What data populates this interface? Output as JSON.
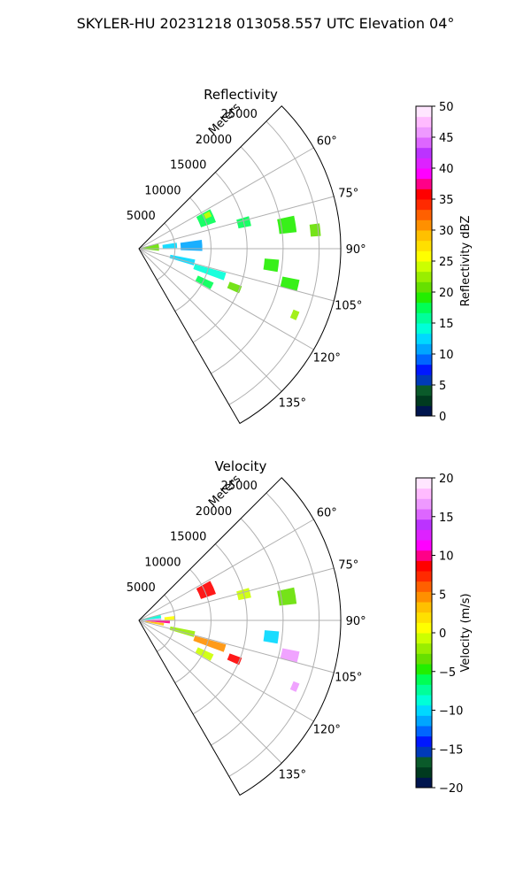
{
  "figure_title": "SKYLER-HU  20231218  013058.557 UTC Elevation 04°",
  "chart_data": [
    {
      "type": "polar-sector",
      "title": "Reflectivity",
      "range_label": "Meters",
      "theta_range_deg": [
        45,
        150
      ],
      "r_range_m": [
        0,
        28000
      ],
      "r_ticks": [
        5000,
        10000,
        15000,
        20000,
        25000
      ],
      "theta_ticks": [
        "60°",
        "75°",
        "90°",
        "105°",
        "120°",
        "135°"
      ],
      "grid": true,
      "colorbar": {
        "label": "Reflectivity dBZ",
        "range": [
          0,
          50
        ],
        "ticks": [
          "0",
          "5",
          "10",
          "15",
          "20",
          "25",
          "30",
          "35",
          "40",
          "45",
          "50"
        ],
        "colors": [
          "#00154e",
          "#003a1f",
          "#0a5a2a",
          "#003ab8",
          "#0018ff",
          "#0066ff",
          "#00a6ff",
          "#00d8ff",
          "#00ffd8",
          "#00ff9a",
          "#00ff55",
          "#22ee00",
          "#66e000",
          "#99ee00",
          "#ccff00",
          "#ffff00",
          "#ffe000",
          "#ffc000",
          "#ff9000",
          "#ff6000",
          "#ff2a00",
          "#ff0000",
          "#ff0088",
          "#ff00ff",
          "#dd22ff",
          "#bb33ff",
          "#dd66ff",
          "#ee99ff",
          "#ffbbff",
          "#ffe6ff"
        ]
      },
      "echoes": [
        {
          "az": 86,
          "r": 1600,
          "dr": 2400,
          "daz": 20,
          "value": 20
        },
        {
          "az": 85,
          "r": 4300,
          "dr": 2000,
          "daz": 8,
          "value": 12
        },
        {
          "az": 87,
          "r": 7300,
          "dr": 3000,
          "daz": 10,
          "value": 10
        },
        {
          "az": 66,
          "r": 10200,
          "dr": 2200,
          "daz": 10,
          "value": 18
        },
        {
          "az": 64,
          "r": 10600,
          "dr": 900,
          "daz": 4,
          "value": 24
        },
        {
          "az": 76,
          "r": 15000,
          "dr": 1800,
          "daz": 5,
          "value": 18
        },
        {
          "az": 81,
          "r": 20800,
          "dr": 2400,
          "daz": 6,
          "value": 19
        },
        {
          "az": 84,
          "r": 24600,
          "dr": 1400,
          "daz": 4,
          "value": 20
        },
        {
          "az": 104,
          "r": 6200,
          "dr": 3500,
          "daz": 6,
          "value": 12
        },
        {
          "az": 108,
          "r": 10300,
          "dr": 4500,
          "daz": 5,
          "value": 14
        },
        {
          "az": 117,
          "r": 10200,
          "dr": 2400,
          "daz": 5,
          "value": 18
        },
        {
          "az": 112,
          "r": 14300,
          "dr": 1800,
          "daz": 4,
          "value": 20
        },
        {
          "az": 97,
          "r": 18500,
          "dr": 2000,
          "daz": 5,
          "value": 19
        },
        {
          "az": 103,
          "r": 21500,
          "dr": 2400,
          "daz": 4,
          "value": 19
        },
        {
          "az": 113,
          "r": 23500,
          "dr": 900,
          "daz": 3,
          "value": 22
        }
      ]
    },
    {
      "type": "polar-sector",
      "title": "Velocity",
      "range_label": "Meters",
      "theta_range_deg": [
        45,
        150
      ],
      "r_range_m": [
        0,
        28000
      ],
      "r_ticks": [
        5000,
        10000,
        15000,
        20000,
        25000
      ],
      "theta_ticks": [
        "60°",
        "75°",
        "90°",
        "105°",
        "120°",
        "135°"
      ],
      "grid": true,
      "colorbar": {
        "label": "Velocity (m/s)",
        "range": [
          -20,
          20
        ],
        "ticks": [
          "−20",
          "−15",
          "−10",
          "−5",
          "0",
          "5",
          "10",
          "15",
          "20"
        ],
        "colors": [
          "#00154e",
          "#003a1f",
          "#0a5a2a",
          "#003ab8",
          "#0018ff",
          "#0066ff",
          "#00a6ff",
          "#00d8ff",
          "#00ffd8",
          "#00ff9a",
          "#00ff55",
          "#22ee00",
          "#66e000",
          "#99ee00",
          "#ccff00",
          "#ffff00",
          "#ffe000",
          "#ffc000",
          "#ff9000",
          "#ff6000",
          "#ff2a00",
          "#ff0000",
          "#ff0088",
          "#ff00ff",
          "#dd22ff",
          "#bb33ff",
          "#dd66ff",
          "#ee99ff",
          "#ffbbff",
          "#ffe6ff"
        ]
      },
      "echoes": [
        {
          "az": 80,
          "r": 1800,
          "dr": 2600,
          "daz": 9,
          "value": -9
        },
        {
          "az": 88,
          "r": 1800,
          "dr": 2600,
          "daz": 6,
          "value": 16
        },
        {
          "az": 93,
          "r": 2500,
          "dr": 3600,
          "daz": 5,
          "value": 10
        },
        {
          "az": 99,
          "r": 2200,
          "dr": 2600,
          "daz": 6,
          "value": 3
        },
        {
          "az": 86,
          "r": 4300,
          "dr": 1500,
          "daz": 6,
          "value": 0
        },
        {
          "az": 66,
          "r": 10200,
          "dr": 2200,
          "daz": 10,
          "value": 8
        },
        {
          "az": 76,
          "r": 15000,
          "dr": 1800,
          "daz": 5,
          "value": -1
        },
        {
          "az": 81,
          "r": 20800,
          "dr": 2400,
          "daz": 6,
          "value": -3
        },
        {
          "az": 104,
          "r": 6200,
          "dr": 3500,
          "daz": 6,
          "value": -2
        },
        {
          "az": 108,
          "r": 10300,
          "dr": 4500,
          "daz": 5,
          "value": 4
        },
        {
          "az": 117,
          "r": 10200,
          "dr": 2400,
          "daz": 5,
          "value": -1
        },
        {
          "az": 112,
          "r": 14300,
          "dr": 1800,
          "daz": 4,
          "value": 8
        },
        {
          "az": 97,
          "r": 18500,
          "dr": 2000,
          "daz": 5,
          "value": -10
        },
        {
          "az": 103,
          "r": 21500,
          "dr": 2400,
          "daz": 4,
          "value": 16
        },
        {
          "az": 113,
          "r": 23500,
          "dr": 900,
          "daz": 3,
          "value": 17
        }
      ]
    }
  ]
}
